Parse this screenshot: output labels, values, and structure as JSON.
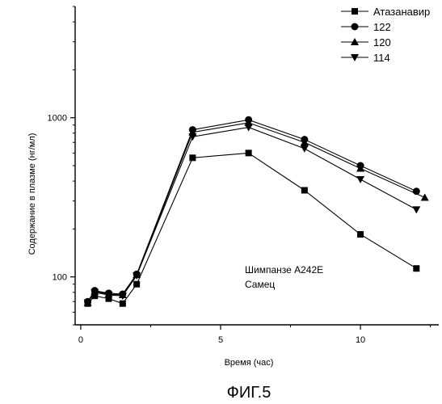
{
  "figure_caption": "ФИГ.5",
  "chart_data": {
    "type": "line",
    "title": "",
    "xlabel": "Время (час)",
    "ylabel": "Содержание в плазме (нг/мл)",
    "x_scale": "linear",
    "y_scale": "log",
    "xlim": [
      -0.2,
      12.8
    ],
    "ylim": [
      50,
      5000
    ],
    "x_ticks": [
      0,
      5,
      10
    ],
    "y_ticks": [
      100,
      1000
    ],
    "grid": false,
    "legend_position": "top-right",
    "annotation": [
      "Шимпанзе A242E",
      "Самец"
    ],
    "series": [
      {
        "name": "Атазанавир",
        "marker": "square",
        "x": [
          0.25,
          0.5,
          1,
          1.5,
          2,
          4,
          6,
          8,
          10,
          12
        ],
        "y": [
          68,
          76,
          73,
          68,
          90,
          560,
          600,
          350,
          185,
          113
        ]
      },
      {
        "name": "122",
        "marker": "circle",
        "x": [
          0.25,
          0.5,
          1,
          1.5,
          2,
          4,
          6,
          8,
          10,
          12
        ],
        "y": [
          70,
          82,
          79,
          78,
          104,
          840,
          970,
          730,
          500,
          345
        ]
      },
      {
        "name": "120",
        "marker": "triangle-up",
        "x": [
          0.25,
          0.5,
          1,
          1.5,
          2,
          4,
          6,
          8,
          10,
          12.3
        ],
        "y": [
          69,
          81,
          78,
          77,
          103,
          810,
          930,
          700,
          480,
          315
        ]
      },
      {
        "name": "114",
        "marker": "triangle-down",
        "x": [
          0.25,
          0.5,
          1,
          1.5,
          2,
          4,
          6,
          8,
          10,
          12
        ],
        "y": [
          69,
          80,
          77,
          76,
          102,
          760,
          870,
          640,
          410,
          265
        ]
      }
    ]
  }
}
